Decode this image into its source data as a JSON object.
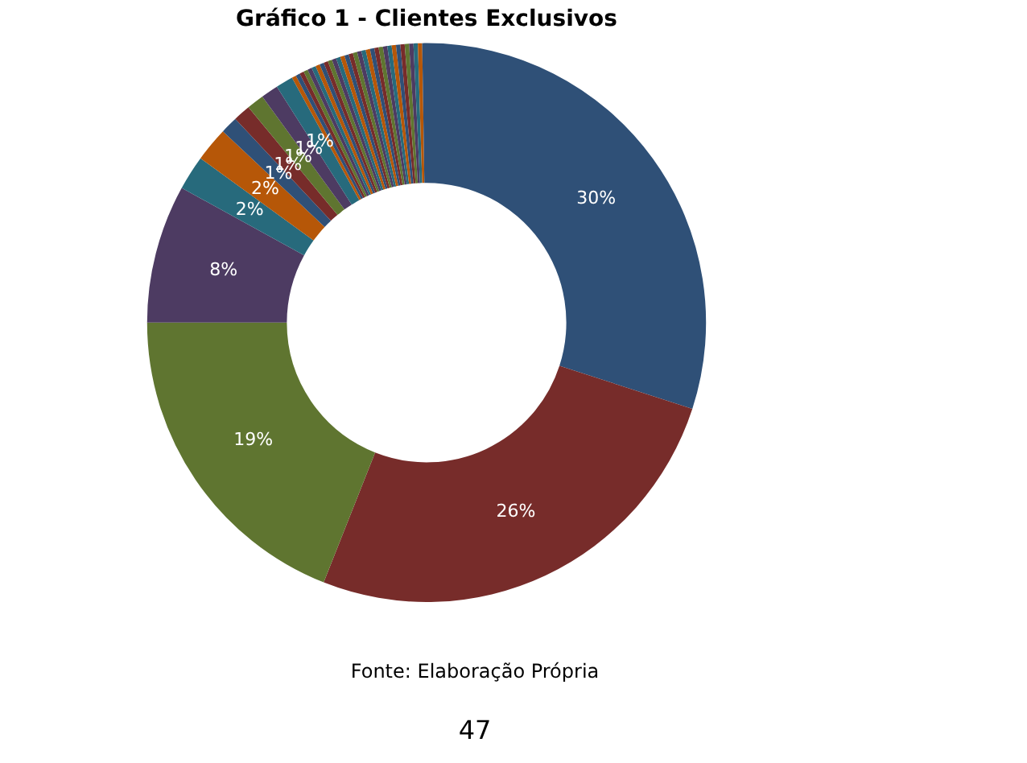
{
  "chart_data": {
    "type": "donut",
    "title": "Gráfico 1 - Clientes Exclusivos",
    "categories": [
      null,
      null,
      null,
      null,
      null,
      null,
      null,
      null,
      null,
      null,
      null,
      null,
      null,
      null,
      null,
      null,
      null,
      null,
      null,
      null,
      null,
      null,
      null,
      null,
      null,
      null,
      null,
      null,
      null,
      null,
      null,
      null,
      null,
      null,
      null,
      null,
      null,
      null,
      null,
      null,
      null,
      null,
      null
    ],
    "values": [
      30,
      26,
      19,
      8,
      2,
      2,
      1,
      1,
      1,
      1,
      1,
      0.25,
      0.25,
      0.25,
      0.25,
      0.25,
      0.25,
      0.25,
      0.25,
      0.25,
      0.25,
      0.25,
      0.25,
      0.25,
      0.25,
      0.25,
      0.25,
      0.25,
      0.25,
      0.25,
      0.25,
      0.25,
      0.25,
      0.25,
      0.25,
      0.25,
      0.25,
      0.25,
      0.25,
      0.25,
      0.25,
      0.25,
      0.25
    ],
    "value_labels": [
      "30%",
      "26%",
      "19%",
      "8%",
      "2%",
      "2%",
      "1%",
      "1%",
      "1%",
      "1%",
      "1%",
      null,
      null,
      null,
      null,
      null,
      null,
      null,
      null,
      null,
      null,
      null,
      null,
      null,
      null,
      null,
      null,
      null,
      null,
      null,
      null,
      null,
      null,
      null,
      null,
      null,
      null,
      null,
      null,
      null,
      null,
      null,
      null
    ],
    "colors": [
      "#2f5077",
      "#772c2a",
      "#5f7530",
      "#4d3b62",
      "#276a7c",
      "#b65708",
      "#2f5077",
      "#772c2a",
      "#5f7530",
      "#4d3b62",
      "#276a7c",
      "#b65708",
      "#2f5077",
      "#772c2a",
      "#5f7530",
      "#4d3b62",
      "#276a7c",
      "#b65708",
      "#2f5077",
      "#772c2a",
      "#5f7530",
      "#4d3b62",
      "#276a7c",
      "#b65708",
      "#2f5077",
      "#772c2a",
      "#5f7530",
      "#4d3b62",
      "#276a7c",
      "#b65708",
      "#2f5077",
      "#772c2a",
      "#5f7530",
      "#4d3b62",
      "#276a7c",
      "#b65708",
      "#2f5077",
      "#772c2a",
      "#5f7530",
      "#4d3b62",
      "#276a7c",
      "#b65708",
      "#2f5077"
    ],
    "legend": false,
    "annotations": [
      "Fonte: Elaboração Própria",
      "47"
    ]
  }
}
